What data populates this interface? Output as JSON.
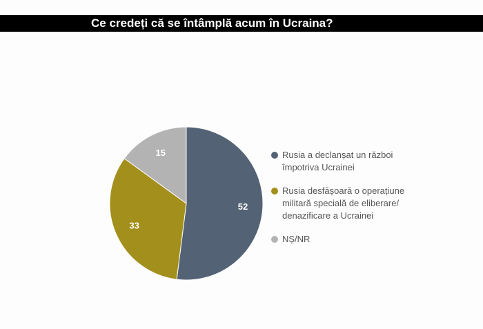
{
  "title": "Ce credeți că se întâmplă acum în Ucraina?",
  "colors": {
    "title_bar": "#000000",
    "title_text": "#ffffff"
  },
  "chart_data": {
    "type": "pie",
    "title": "Ce credeți că se întâmplă acum în Ucraina?",
    "slices": [
      {
        "label": "Rusia a declanșat un război\nîmpotriva Ucrainei",
        "value": 52,
        "color": "#536274"
      },
      {
        "label": "Rusia desfășoară o operațiune\nmilitară specială de eliberare/\ndenazificare a Ucrainei",
        "value": 33,
        "color": "#a38f1b"
      },
      {
        "label": "NȘ/NR",
        "value": 15,
        "color": "#b3b3b3"
      }
    ],
    "data_labels": [
      "52",
      "33",
      "15"
    ],
    "legend_position": "right"
  }
}
